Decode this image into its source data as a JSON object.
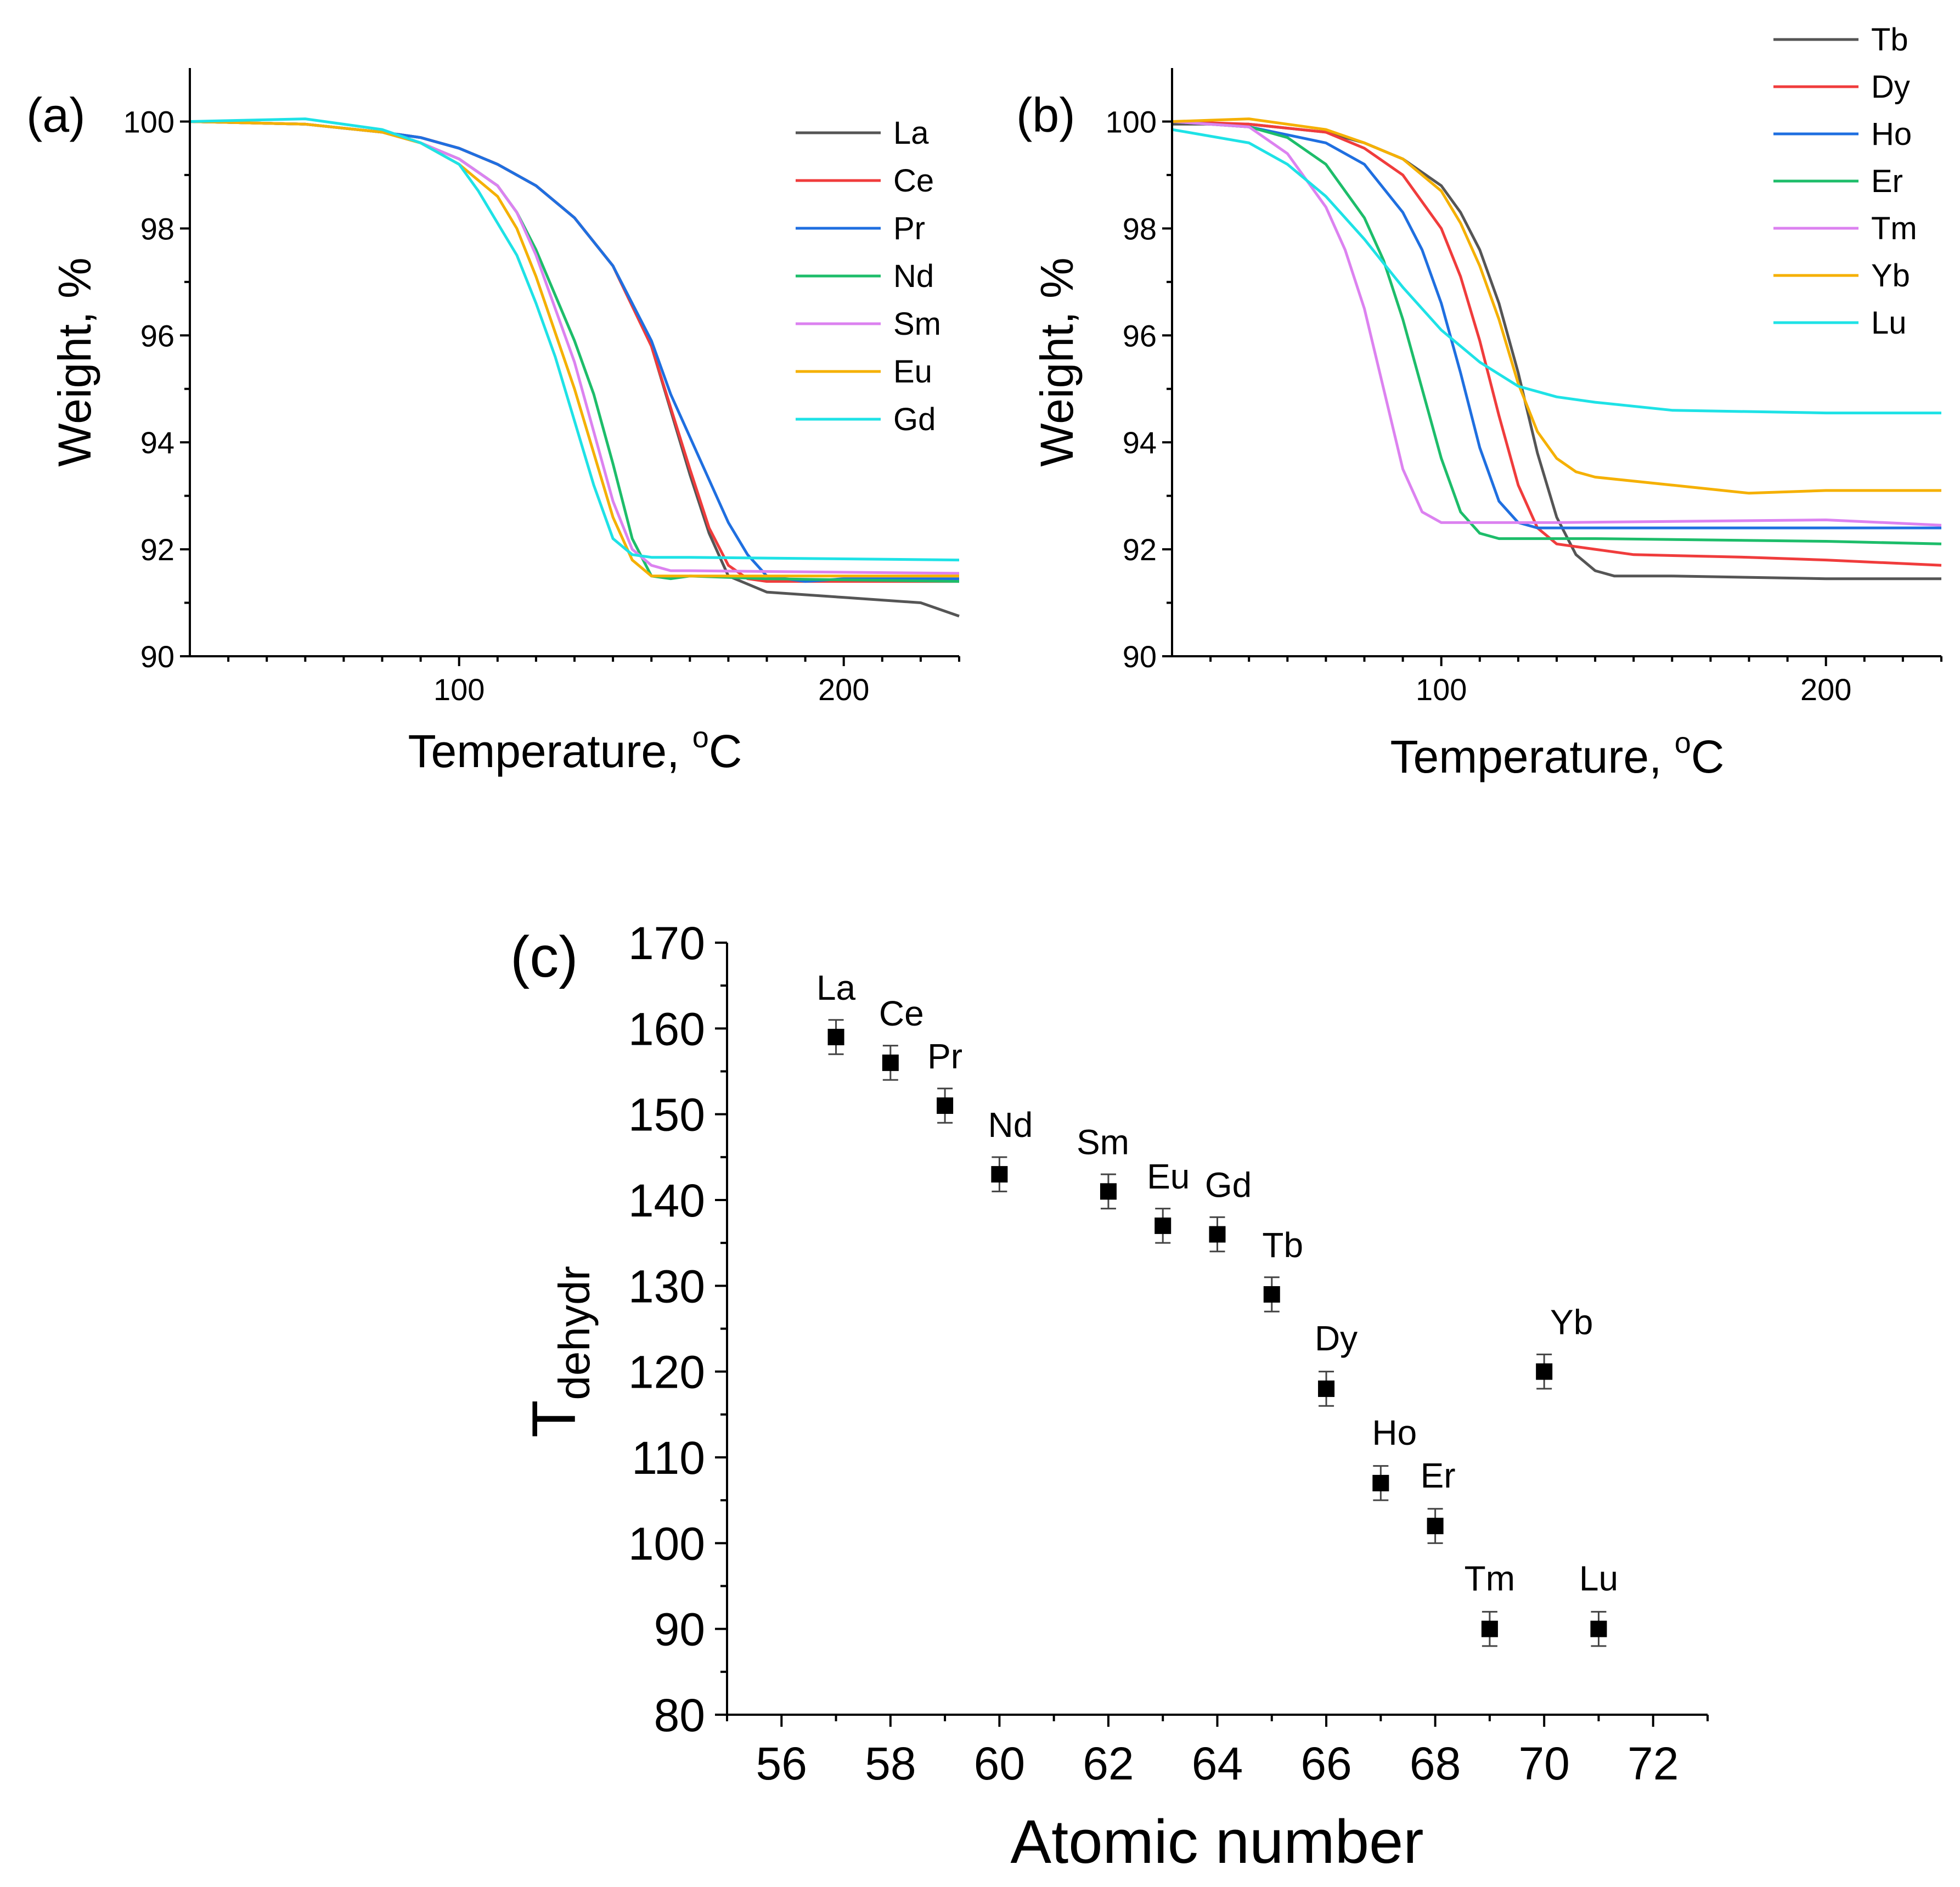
{
  "colors": {
    "La": "#555555",
    "Ce": "#f03c3c",
    "Pr": "#1f6fe0",
    "Nd": "#1dbd6a",
    "Sm": "#dc82f0",
    "Eu": "#f5b000",
    "Gd": "#1ee2e6",
    "Tb": "#555555",
    "Dy": "#f03c3c",
    "Ho": "#1f6fe0",
    "Er": "#1dbd6a",
    "Tm": "#dc82f0",
    "Yb": "#f5b000",
    "Lu": "#1ee2e6"
  },
  "chart_data": [
    {
      "panel": "(a)",
      "type": "line",
      "xlabel_main": "Temperature, ",
      "xlabel_sup": "o",
      "xlabel_unit": "C",
      "ylabel": "Weight, %",
      "xlim": [
        30,
        230
      ],
      "ylim": [
        90,
        101
      ],
      "xticks": [
        100,
        200
      ],
      "yticks": [
        90,
        92,
        94,
        96,
        98,
        100
      ],
      "legend_position": "top-right",
      "series": [
        {
          "name": "La",
          "x": [
            30,
            60,
            80,
            90,
            100,
            110,
            120,
            130,
            140,
            150,
            155,
            160,
            165,
            170,
            180,
            200,
            220,
            230
          ],
          "y": [
            100,
            99.95,
            99.8,
            99.7,
            99.5,
            99.2,
            98.8,
            98.2,
            97.3,
            95.8,
            94.6,
            93.4,
            92.3,
            91.5,
            91.2,
            91.1,
            91.0,
            90.75
          ]
        },
        {
          "name": "Ce",
          "x": [
            30,
            60,
            80,
            90,
            100,
            110,
            120,
            130,
            140,
            150,
            160,
            165,
            170,
            175,
            180,
            200,
            230
          ],
          "y": [
            100,
            99.95,
            99.8,
            99.7,
            99.5,
            99.2,
            98.8,
            98.2,
            97.3,
            95.8,
            93.5,
            92.4,
            91.7,
            91.45,
            91.4,
            91.4,
            91.4
          ]
        },
        {
          "name": "Pr",
          "x": [
            30,
            60,
            80,
            90,
            100,
            110,
            120,
            130,
            140,
            150,
            155,
            160,
            170,
            175,
            180,
            190,
            200,
            230
          ],
          "y": [
            100,
            99.95,
            99.8,
            99.7,
            99.5,
            99.2,
            98.8,
            98.2,
            97.3,
            95.9,
            94.9,
            94.1,
            92.5,
            91.9,
            91.5,
            91.4,
            91.45,
            91.45
          ]
        },
        {
          "name": "Nd",
          "x": [
            30,
            60,
            80,
            90,
            100,
            110,
            115,
            120,
            130,
            135,
            140,
            145,
            150,
            155,
            160,
            180,
            230
          ],
          "y": [
            100,
            99.95,
            99.8,
            99.6,
            99.3,
            98.8,
            98.3,
            97.6,
            95.9,
            94.9,
            93.6,
            92.2,
            91.5,
            91.45,
            91.5,
            91.45,
            91.4
          ]
        },
        {
          "name": "Sm",
          "x": [
            30,
            60,
            80,
            90,
            100,
            110,
            115,
            120,
            130,
            135,
            140,
            145,
            150,
            155,
            160,
            230
          ],
          "y": [
            100,
            99.95,
            99.8,
            99.6,
            99.3,
            98.8,
            98.3,
            97.5,
            95.5,
            94.2,
            92.9,
            92.0,
            91.7,
            91.6,
            91.6,
            91.55
          ]
        },
        {
          "name": "Eu",
          "x": [
            30,
            60,
            80,
            90,
            100,
            110,
            115,
            120,
            130,
            135,
            140,
            145,
            150,
            155,
            160,
            230
          ],
          "y": [
            100,
            99.95,
            99.8,
            99.6,
            99.2,
            98.6,
            98.0,
            97.1,
            95.0,
            93.8,
            92.6,
            91.8,
            91.5,
            91.5,
            91.5,
            91.5
          ]
        },
        {
          "name": "Gd",
          "x": [
            30,
            60,
            80,
            90,
            100,
            105,
            110,
            115,
            120,
            125,
            130,
            135,
            140,
            145,
            150,
            160,
            230
          ],
          "y": [
            100,
            100.05,
            99.85,
            99.6,
            99.2,
            98.7,
            98.1,
            97.5,
            96.6,
            95.6,
            94.4,
            93.2,
            92.2,
            91.9,
            91.85,
            91.85,
            91.8
          ]
        }
      ]
    },
    {
      "panel": "(b)",
      "type": "line",
      "xlabel_main": "Temperature, ",
      "xlabel_sup": "o",
      "xlabel_unit": "C",
      "ylabel": "Weight, %",
      "xlim": [
        30,
        230
      ],
      "ylim": [
        90,
        101
      ],
      "xticks": [
        100,
        200
      ],
      "yticks": [
        90,
        92,
        94,
        96,
        98,
        100
      ],
      "legend_position": "top-right",
      "series": [
        {
          "name": "Tb",
          "x": [
            30,
            50,
            70,
            80,
            90,
            100,
            105,
            110,
            115,
            120,
            125,
            130,
            135,
            140,
            145,
            160,
            200,
            230
          ],
          "y": [
            99.95,
            99.95,
            99.8,
            99.6,
            99.3,
            98.8,
            98.3,
            97.6,
            96.6,
            95.3,
            93.8,
            92.6,
            91.9,
            91.6,
            91.5,
            91.5,
            91.45,
            91.45
          ]
        },
        {
          "name": "Dy",
          "x": [
            30,
            50,
            70,
            80,
            90,
            100,
            105,
            110,
            115,
            120,
            125,
            130,
            140,
            150,
            180,
            200,
            230
          ],
          "y": [
            100,
            99.95,
            99.8,
            99.5,
            99.0,
            98.0,
            97.1,
            95.9,
            94.5,
            93.2,
            92.4,
            92.1,
            92.0,
            91.9,
            91.85,
            91.8,
            91.7
          ]
        },
        {
          "name": "Ho",
          "x": [
            30,
            50,
            70,
            80,
            90,
            95,
            100,
            105,
            110,
            115,
            120,
            125,
            130,
            150,
            230
          ],
          "y": [
            100,
            99.9,
            99.6,
            99.2,
            98.3,
            97.6,
            96.6,
            95.3,
            93.9,
            92.9,
            92.5,
            92.4,
            92.4,
            92.4,
            92.4
          ]
        },
        {
          "name": "Er",
          "x": [
            30,
            50,
            60,
            70,
            80,
            85,
            90,
            95,
            100,
            105,
            110,
            115,
            120,
            140,
            200,
            230
          ],
          "y": [
            100,
            99.9,
            99.7,
            99.2,
            98.2,
            97.4,
            96.3,
            95.0,
            93.7,
            92.7,
            92.3,
            92.2,
            92.2,
            92.2,
            92.15,
            92.1
          ]
        },
        {
          "name": "Tm",
          "x": [
            30,
            50,
            60,
            70,
            75,
            80,
            85,
            90,
            95,
            100,
            110,
            130,
            200,
            230
          ],
          "y": [
            100,
            99.9,
            99.4,
            98.4,
            97.6,
            96.5,
            95.0,
            93.5,
            92.7,
            92.5,
            92.5,
            92.5,
            92.55,
            92.45
          ]
        },
        {
          "name": "Yb",
          "x": [
            30,
            50,
            70,
            80,
            90,
            100,
            105,
            110,
            115,
            120,
            125,
            130,
            135,
            140,
            160,
            180,
            200,
            230
          ],
          "y": [
            100,
            100.05,
            99.85,
            99.6,
            99.3,
            98.7,
            98.1,
            97.3,
            96.3,
            95.1,
            94.2,
            93.7,
            93.45,
            93.35,
            93.2,
            93.05,
            93.1,
            93.1
          ]
        },
        {
          "name": "Lu",
          "x": [
            30,
            50,
            60,
            70,
            80,
            90,
            100,
            110,
            120,
            130,
            140,
            160,
            200,
            230
          ],
          "y": [
            99.85,
            99.6,
            99.2,
            98.6,
            97.8,
            96.9,
            96.1,
            95.5,
            95.05,
            94.85,
            94.75,
            94.6,
            94.55,
            94.55
          ]
        }
      ]
    },
    {
      "panel": "(c)",
      "type": "scatter",
      "xlabel": "Atomic number",
      "ylabel_main": "T",
      "ylabel_sub": "dehydr",
      "xlim": [
        55,
        73
      ],
      "ylim": [
        80,
        170
      ],
      "xticks": [
        56,
        58,
        60,
        62,
        64,
        66,
        68,
        70,
        72
      ],
      "yticks": [
        80,
        90,
        100,
        110,
        120,
        130,
        140,
        150,
        160,
        170
      ],
      "error": 2,
      "points": [
        {
          "label": "La",
          "x": 57,
          "y": 159
        },
        {
          "label": "Ce",
          "x": 58,
          "y": 156
        },
        {
          "label": "Pr",
          "x": 59,
          "y": 151
        },
        {
          "label": "Nd",
          "x": 60,
          "y": 143
        },
        {
          "label": "Sm",
          "x": 62,
          "y": 141
        },
        {
          "label": "Eu",
          "x": 63,
          "y": 137
        },
        {
          "label": "Gd",
          "x": 64,
          "y": 136
        },
        {
          "label": "Tb",
          "x": 65,
          "y": 129
        },
        {
          "label": "Dy",
          "x": 66,
          "y": 118
        },
        {
          "label": "Ho",
          "x": 67,
          "y": 107
        },
        {
          "label": "Er",
          "x": 68,
          "y": 102
        },
        {
          "label": "Tm",
          "x": 69,
          "y": 90
        },
        {
          "label": "Yb",
          "x": 70,
          "y": 120
        },
        {
          "label": "Lu",
          "x": 71,
          "y": 90
        }
      ]
    }
  ]
}
